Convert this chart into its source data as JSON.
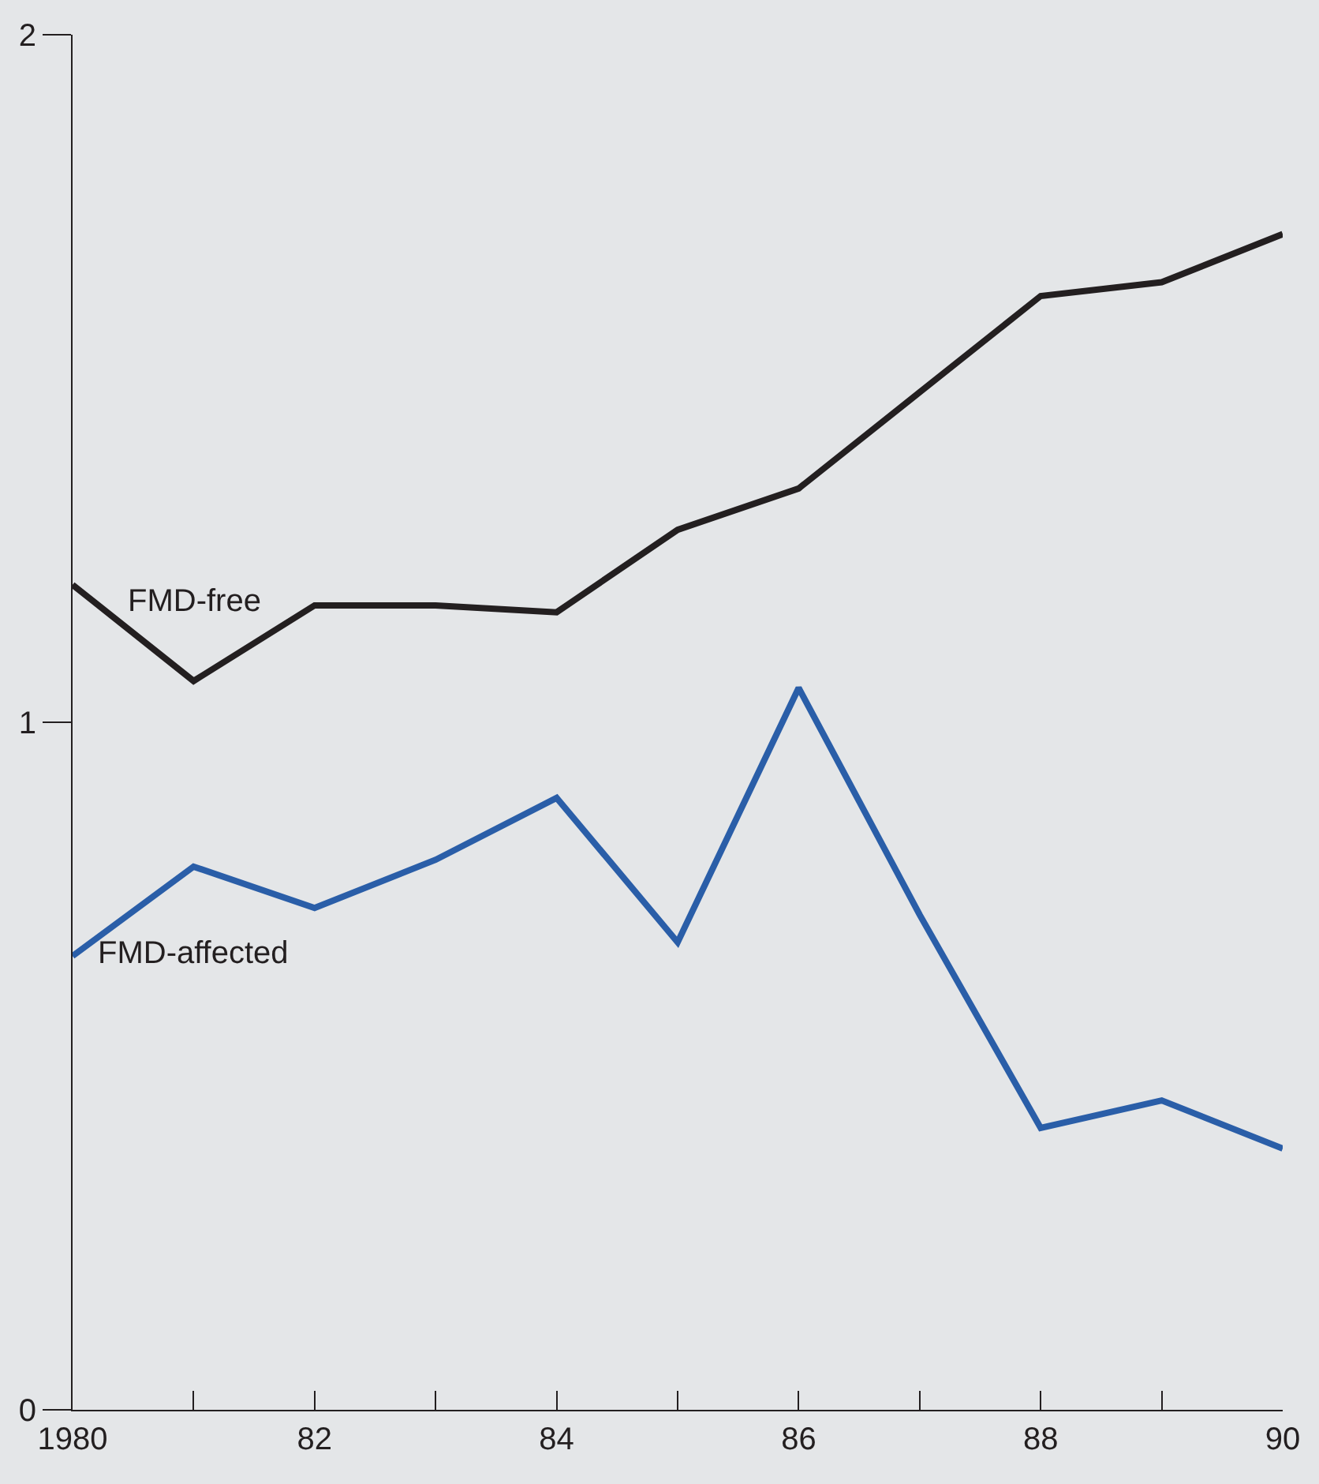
{
  "chart_data": {
    "type": "line",
    "x": [
      1980,
      1981,
      1982,
      1983,
      1984,
      1985,
      1986,
      1987,
      1988,
      1989,
      1990
    ],
    "series": [
      {
        "name": "FMD-free",
        "color": "#231f20",
        "values": [
          1.2,
          1.06,
          1.17,
          1.17,
          1.16,
          1.28,
          1.34,
          1.48,
          1.62,
          1.64,
          1.71
        ]
      },
      {
        "name": "FMD-affected",
        "color": "#2a5ea8",
        "values": [
          0.66,
          0.79,
          0.73,
          0.8,
          0.89,
          0.68,
          1.05,
          0.72,
          0.41,
          0.45,
          0.38
        ]
      }
    ],
    "xlim": [
      1980,
      1990
    ],
    "xticks": [
      1980,
      {
        "value": 1981,
        "label": null
      },
      {
        "value": 1982,
        "label": "82"
      },
      {
        "value": 1983,
        "label": null
      },
      {
        "value": 1984,
        "label": "84"
      },
      {
        "value": 1985,
        "label": null
      },
      {
        "value": 1986,
        "label": "86"
      },
      {
        "value": 1987,
        "label": null
      },
      {
        "value": 1988,
        "label": "88"
      },
      {
        "value": 1989,
        "label": null
      },
      {
        "value": 1990,
        "label": "90"
      }
    ],
    "ylim": [
      0,
      2
    ],
    "yticks": [
      0,
      1,
      2
    ],
    "grid": false,
    "legend": false,
    "marker": "none",
    "line_style": "solid"
  }
}
